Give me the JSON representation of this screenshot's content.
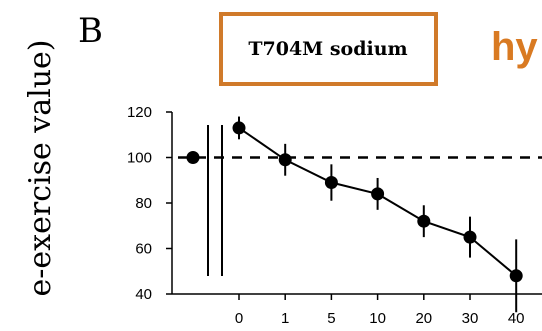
{
  "panel_label": "B",
  "ylabel": "e-exercise value)",
  "boxed_label": "T704M sodium",
  "title_fragment": "hy",
  "colors": {
    "box_border": "#d07a2a",
    "title": "#d97a22",
    "ink": "#000000"
  },
  "chart_data": {
    "type": "line",
    "ylabel": "e-exercise value)",
    "ylim": [
      40,
      120
    ],
    "yticks": [
      "40",
      "60",
      "80",
      "100",
      "120"
    ],
    "reference_line": {
      "y": 100,
      "style": "dashed"
    },
    "baseline_point": {
      "y": 100
    },
    "x": [
      "0",
      "1",
      "5",
      "10",
      "20",
      "30",
      "40"
    ],
    "series": [
      {
        "values": [
          113,
          99,
          89,
          84,
          72,
          65,
          48
        ],
        "errors": [
          5,
          7,
          8,
          7,
          7,
          9,
          16
        ]
      }
    ]
  }
}
